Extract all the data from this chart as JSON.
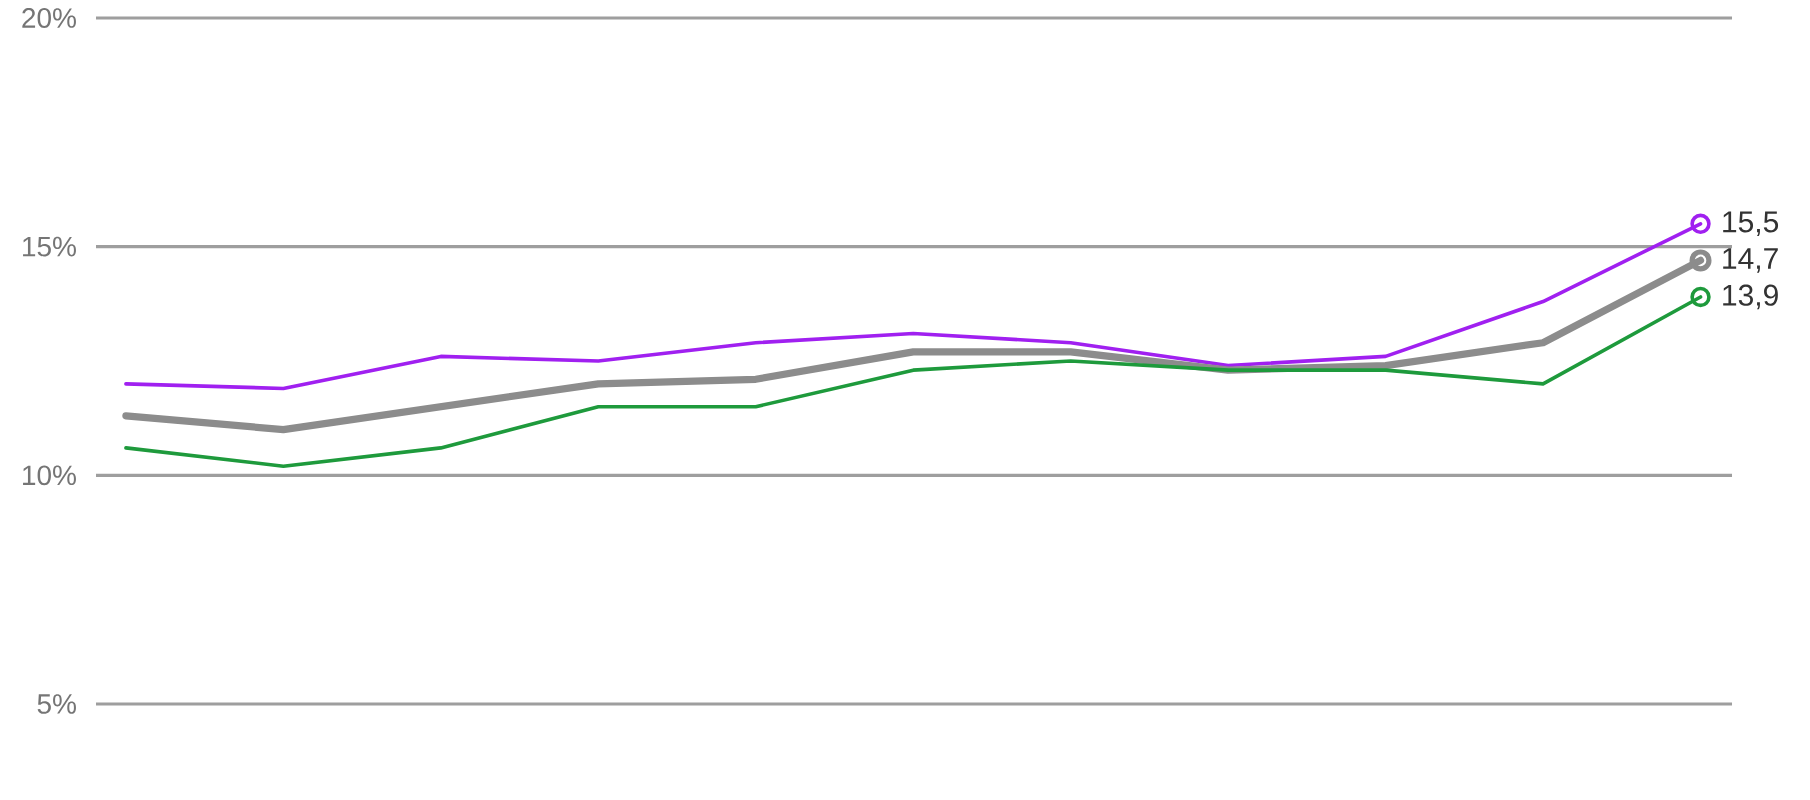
{
  "chart_data": {
    "type": "line",
    "categories": [
      null,
      null,
      null,
      null,
      null,
      null,
      null,
      null,
      null,
      null,
      null
    ],
    "series": [
      {
        "color": "#a020f0",
        "values": [
          12.0,
          11.9,
          12.6,
          12.5,
          12.9,
          13.1,
          12.9,
          12.4,
          12.6,
          13.8,
          15.5
        ],
        "value_labels": [
          null,
          null,
          null,
          null,
          null,
          null,
          null,
          null,
          null,
          null,
          "15,5"
        ]
      },
      {
        "color": "#8c8c8c",
        "values": [
          11.3,
          11.0,
          11.5,
          12.0,
          12.1,
          12.7,
          12.7,
          12.3,
          12.4,
          12.9,
          14.7
        ],
        "value_labels": [
          null,
          null,
          null,
          null,
          null,
          null,
          null,
          null,
          null,
          null,
          "14,7"
        ]
      },
      {
        "color": "#1e9a3c",
        "values": [
          10.6,
          10.2,
          10.6,
          11.5,
          11.5,
          12.3,
          12.5,
          12.3,
          12.3,
          12.0,
          13.9
        ],
        "value_labels": [
          null,
          null,
          null,
          null,
          null,
          null,
          null,
          null,
          null,
          null,
          "13,9"
        ]
      }
    ],
    "ylim": [
      5,
      20
    ],
    "yticks": [
      {
        "value": 5,
        "label": "5%"
      },
      {
        "value": 10,
        "label": "10%"
      },
      {
        "value": 15,
        "label": "15%"
      },
      {
        "value": 20,
        "label": "20%"
      }
    ],
    "grid": "y",
    "tick_labels": "y",
    "line_style": "solid"
  }
}
